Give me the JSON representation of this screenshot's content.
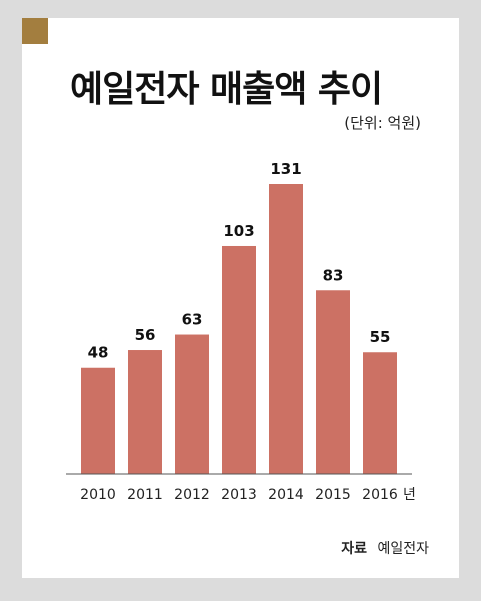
{
  "colors": {
    "background": "#dcdcdc",
    "panel": "#ffffff",
    "accent_square": "#a37e3f",
    "bar": "#cc7164",
    "axis": "#555555",
    "text": "#222222"
  },
  "header": {
    "title": "예일전자 매출액 추이",
    "unit_note": "(단위: 억원)"
  },
  "chart_data": {
    "type": "bar",
    "categories": [
      "2010",
      "2011",
      "2012",
      "2013",
      "2014",
      "2015",
      "2016"
    ],
    "x_unit_suffix": "년",
    "values": [
      48,
      56,
      63,
      103,
      131,
      83,
      55
    ],
    "data_labels": [
      "48",
      "56",
      "63",
      "103",
      "131",
      "83",
      "55"
    ],
    "title": "예일전자 매출액 추이",
    "unit": "(단위: 억원)",
    "xlabel": "",
    "ylabel": "",
    "ylim": [
      0,
      131
    ],
    "grid": false,
    "legend": "none"
  },
  "footer": {
    "source_label": "자료",
    "source_value": "예일전자"
  }
}
